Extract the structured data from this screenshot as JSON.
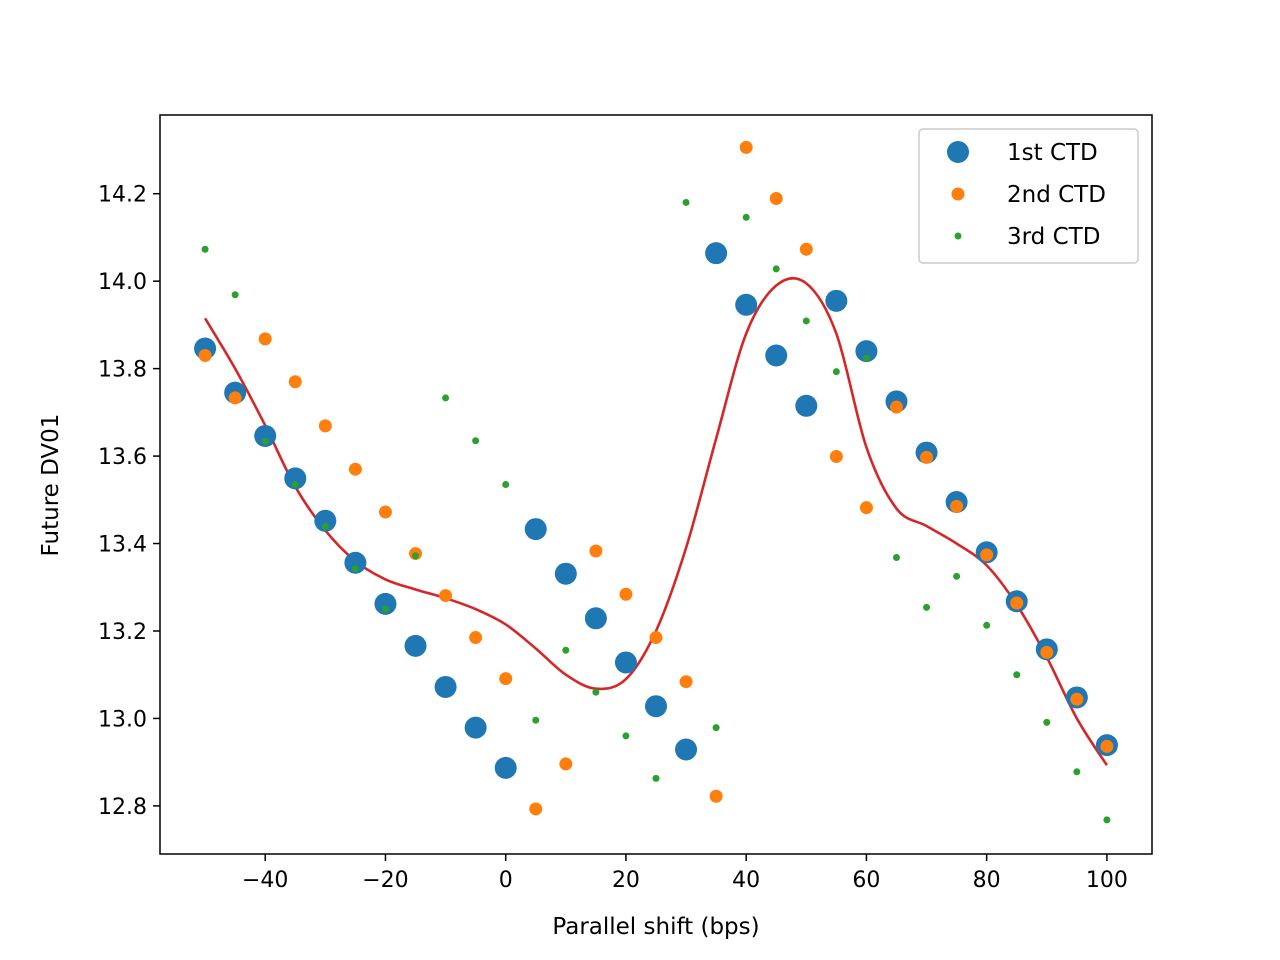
{
  "chart_data": {
    "type": "scatter",
    "title": "",
    "xlabel": "Parallel shift (bps)",
    "ylabel": "Future DV01",
    "xlim": [
      -57.5,
      107.5
    ],
    "ylim": [
      12.69,
      14.38
    ],
    "xticks": [
      -40,
      -20,
      0,
      20,
      40,
      60,
      80,
      100
    ],
    "yticks": [
      12.8,
      13.0,
      13.2,
      13.4,
      13.6,
      13.8,
      14.0,
      14.2
    ],
    "grid": false,
    "legend_position": "top-right",
    "x": [
      -50,
      -45,
      -40,
      -35,
      -30,
      -25,
      -20,
      -15,
      -10,
      -5,
      0,
      5,
      10,
      15,
      20,
      25,
      30,
      35,
      40,
      45,
      50,
      55,
      60,
      65,
      70,
      75,
      80,
      85,
      90,
      95,
      100
    ],
    "series": [
      {
        "name": "1st CTD",
        "marker": "large",
        "color": "#1f77b4",
        "values": [
          13.846,
          13.745,
          13.646,
          13.549,
          13.452,
          13.356,
          13.262,
          13.166,
          13.072,
          12.979,
          12.887,
          13.433,
          13.331,
          13.229,
          13.128,
          13.028,
          12.929,
          14.064,
          13.946,
          13.83,
          13.715,
          13.955,
          13.84,
          13.725,
          13.608,
          13.495,
          13.38,
          13.268,
          13.158,
          13.048,
          12.939
        ]
      },
      {
        "name": "2nd CTD",
        "marker": "medium",
        "color": "#ff7f0e",
        "values": [
          13.83,
          13.733,
          13.868,
          13.77,
          13.669,
          13.57,
          13.472,
          13.377,
          13.281,
          13.185,
          13.091,
          12.793,
          12.896,
          13.383,
          13.284,
          13.185,
          13.084,
          12.822,
          14.306,
          14.189,
          14.073,
          13.599,
          13.482,
          13.712,
          13.597,
          13.485,
          13.374,
          13.264,
          13.151,
          13.044,
          12.936
        ]
      },
      {
        "name": "3rd CTD",
        "marker": "small",
        "color": "#2ca02c",
        "values": [
          14.073,
          13.969,
          13.634,
          13.535,
          13.439,
          13.343,
          13.25,
          13.372,
          13.733,
          13.635,
          13.535,
          12.996,
          13.156,
          13.06,
          12.96,
          12.863,
          14.18,
          12.979,
          14.146,
          14.028,
          13.909,
          13.793,
          13.824,
          13.368,
          13.254,
          13.325,
          13.213,
          13.1,
          12.991,
          12.878,
          12.768
        ]
      }
    ],
    "fitted_curve": {
      "color": "#d62728",
      "x": [
        -50,
        -45,
        -40,
        -35,
        -30,
        -25,
        -20,
        -15,
        -10,
        -5,
        0,
        5,
        10,
        15,
        20,
        25,
        30,
        35,
        40,
        45,
        50,
        55,
        60,
        65,
        70,
        75,
        80,
        85,
        90,
        95,
        100
      ],
      "values": [
        13.915,
        13.8,
        13.67,
        13.53,
        13.43,
        13.36,
        13.318,
        13.295,
        13.275,
        13.25,
        13.215,
        13.16,
        13.1,
        13.068,
        13.09,
        13.2,
        13.39,
        13.64,
        13.88,
        13.99,
        13.995,
        13.88,
        13.62,
        13.48,
        13.44,
        13.4,
        13.35,
        13.26,
        13.14,
        13.0,
        12.893
      ]
    }
  }
}
